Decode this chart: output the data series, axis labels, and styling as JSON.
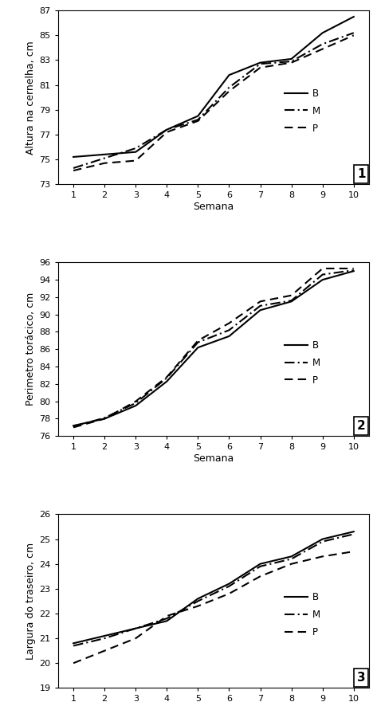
{
  "weeks": [
    1,
    2,
    3,
    4,
    5,
    6,
    7,
    8,
    9,
    10
  ],
  "chart1": {
    "ylabel": "Altura na cernelha, cm",
    "xlabel": "Semana",
    "label": "1",
    "ylim": [
      73,
      87
    ],
    "yticks": [
      73,
      75,
      77,
      79,
      81,
      83,
      85,
      87
    ],
    "B": [
      75.2,
      75.4,
      75.6,
      77.4,
      78.5,
      81.8,
      82.8,
      83.1,
      85.2,
      86.5
    ],
    "M": [
      74.3,
      75.1,
      75.9,
      77.4,
      78.2,
      80.8,
      82.7,
      82.9,
      84.3,
      85.2
    ],
    "P": [
      74.1,
      74.7,
      74.9,
      77.2,
      78.1,
      80.5,
      82.4,
      82.8,
      83.9,
      85.0
    ]
  },
  "chart2": {
    "ylabel": "Perimetro torácico, cm",
    "xlabel": "Semana",
    "label": "2",
    "ylim": [
      76,
      96
    ],
    "yticks": [
      76,
      78,
      80,
      82,
      84,
      86,
      88,
      90,
      92,
      94,
      96
    ],
    "B": [
      77.2,
      78.0,
      79.5,
      82.3,
      86.2,
      87.5,
      90.5,
      91.5,
      94.0,
      95.0
    ],
    "M": [
      77.1,
      78.1,
      79.8,
      82.7,
      86.8,
      88.2,
      91.0,
      91.6,
      94.6,
      95.1
    ],
    "P": [
      77.0,
      78.0,
      80.0,
      82.8,
      87.0,
      89.0,
      91.5,
      92.2,
      95.3,
      95.3
    ]
  },
  "chart3": {
    "ylabel": "Largura do traseiro, cm",
    "xlabel": "Semana",
    "label": "3",
    "ylim": [
      19,
      26
    ],
    "yticks": [
      19,
      20,
      21,
      22,
      23,
      24,
      25,
      26
    ],
    "B": [
      20.8,
      21.1,
      21.4,
      21.7,
      22.6,
      23.2,
      24.0,
      24.3,
      25.0,
      25.3
    ],
    "M": [
      20.7,
      21.0,
      21.4,
      21.8,
      22.5,
      23.1,
      23.9,
      24.2,
      24.9,
      25.2
    ],
    "P": [
      20.0,
      20.5,
      21.0,
      21.9,
      22.3,
      22.8,
      23.5,
      24.0,
      24.3,
      24.5
    ]
  },
  "line_color": "#000000",
  "line_width": 1.5,
  "legend_fontsize": 8.5,
  "tick_fontsize": 8,
  "label_fontsize": 9
}
